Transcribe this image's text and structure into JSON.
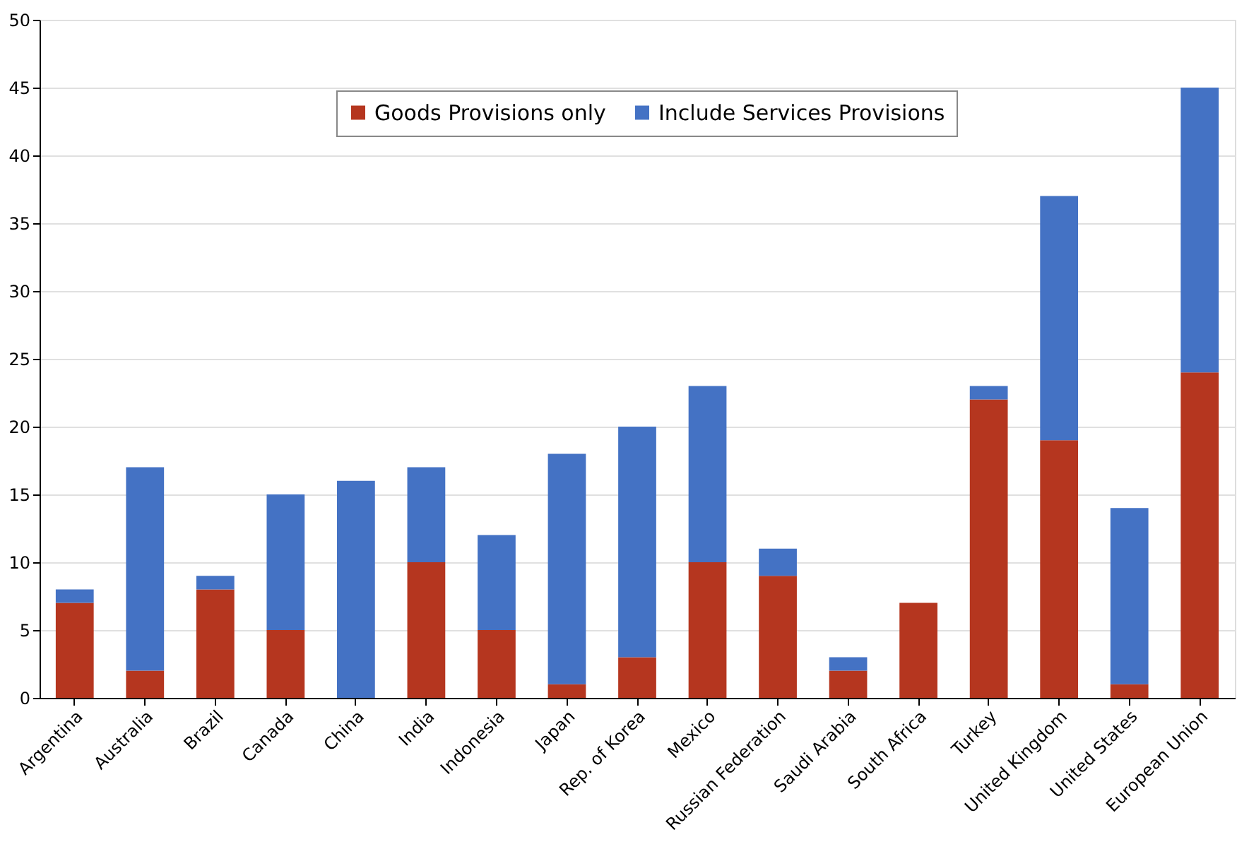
{
  "chart_data": {
    "type": "bar",
    "stacked": true,
    "categories": [
      "Argentina",
      "Australia",
      "Brazil",
      "Canada",
      "China",
      "India",
      "Indonesia",
      "Japan",
      "Rep. of Korea",
      "Mexico",
      "Russian Federation",
      "Saudi Arabia",
      "South Africa",
      "Turkey",
      "United Kingdom",
      "United States",
      "European Union"
    ],
    "series": [
      {
        "name": "Goods Provisions only",
        "color": "#b5361f",
        "values": [
          7,
          2,
          8,
          5,
          0,
          10,
          5,
          1,
          3,
          10,
          9,
          2,
          7,
          22,
          19,
          1,
          24
        ]
      },
      {
        "name": "Include Services Provisions",
        "color": "#4472c4",
        "values": [
          1,
          15,
          1,
          10,
          16,
          7,
          7,
          17,
          17,
          13,
          2,
          1,
          0,
          1,
          18,
          13,
          21
        ]
      }
    ],
    "ylim": [
      0,
      50
    ],
    "yticks": [
      0,
      5,
      10,
      15,
      20,
      25,
      30,
      35,
      40,
      45,
      50
    ],
    "grid": "y",
    "legend": "top"
  }
}
